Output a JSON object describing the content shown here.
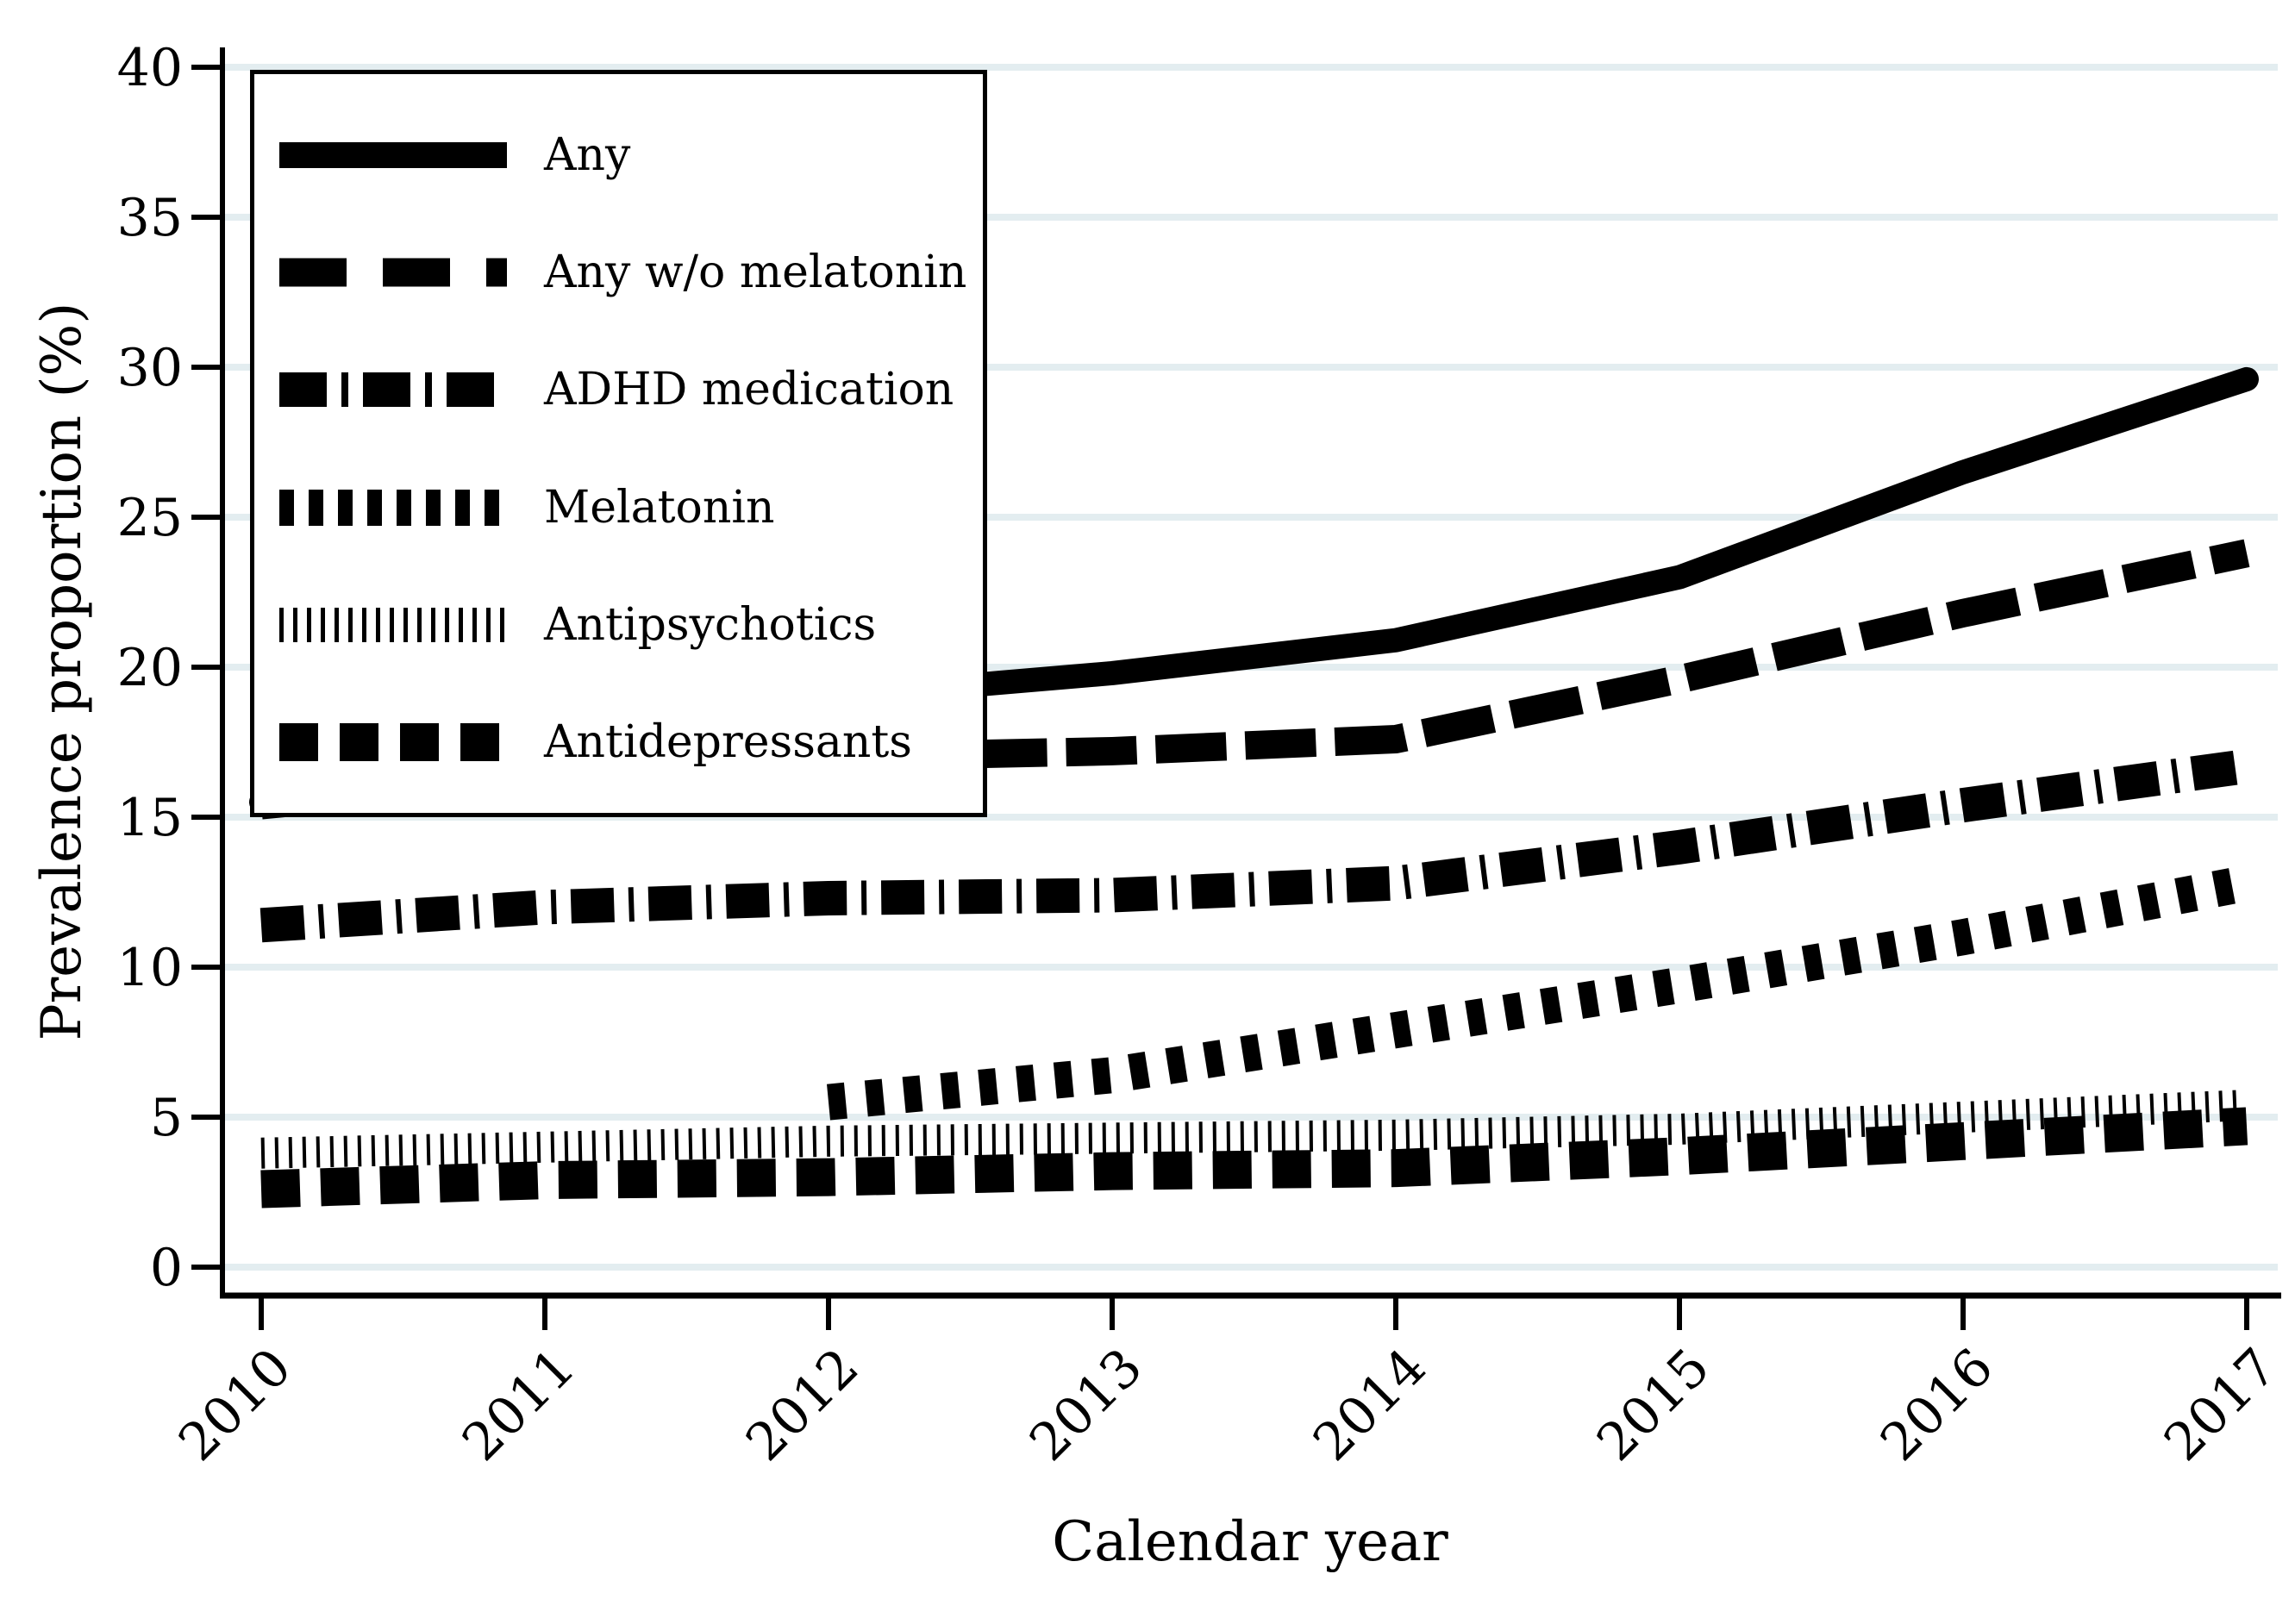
{
  "chart_data": {
    "type": "line",
    "title": "",
    "xlabel": "Calendar year",
    "ylabel": "Prevalence proportion (%)",
    "x": [
      2010,
      2011,
      2012,
      2013,
      2014,
      2015,
      2016,
      2017
    ],
    "yticks": [
      0,
      5,
      10,
      15,
      20,
      25,
      30,
      35,
      40
    ],
    "ylim": [
      0,
      40
    ],
    "grid": "horizontal",
    "legend_position": "top-left-inside",
    "series": [
      {
        "name": "Any",
        "style": "solid",
        "values": [
          15.5,
          16.4,
          19.0,
          19.8,
          20.9,
          23.0,
          26.5,
          29.6
        ]
      },
      {
        "name": "Any w/o melatonin",
        "style": "long-dash",
        "values": [
          15.4,
          16.3,
          17.0,
          17.2,
          17.6,
          19.6,
          21.8,
          23.8
        ]
      },
      {
        "name": "ADHD medication",
        "style": "dash-dot",
        "values": [
          11.4,
          12.0,
          12.3,
          12.4,
          12.8,
          14.0,
          15.4,
          16.7
        ]
      },
      {
        "name": "Melatonin",
        "style": "square-dot",
        "values": [
          null,
          null,
          5.5,
          6.4,
          7.9,
          9.4,
          11.0,
          12.8
        ]
      },
      {
        "name": "Antipsychotics",
        "style": "thin-tick",
        "values": [
          3.8,
          4.0,
          4.2,
          4.3,
          4.4,
          4.6,
          5.0,
          5.4
        ]
      },
      {
        "name": "Antidepressants",
        "style": "short-dash",
        "values": [
          2.6,
          2.9,
          3.0,
          3.2,
          3.3,
          3.7,
          4.2,
          4.7
        ]
      }
    ],
    "colors": {
      "line": "#000000",
      "grid": "#e3edf0",
      "text": "#000000",
      "background": "#ffffff"
    }
  }
}
